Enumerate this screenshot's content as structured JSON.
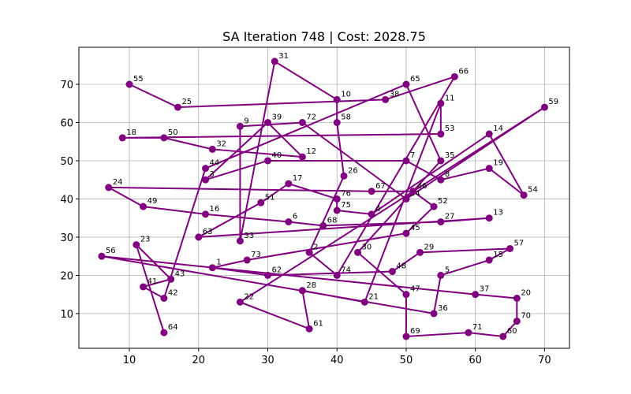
{
  "chart_data": {
    "type": "line",
    "title": "SA Iteration 748 | Cost: 2028.75",
    "labels": [
      "55",
      "25",
      "38",
      "66",
      "74",
      "2",
      "26",
      "58",
      "10",
      "31",
      "33",
      "9",
      "72",
      "34",
      "59",
      "22",
      "61",
      "28",
      "21",
      "11",
      "53",
      "18",
      "50",
      "32",
      "12",
      "39",
      "3",
      "40",
      "7",
      "8",
      "19",
      "54",
      "14",
      "4",
      "75",
      "76",
      "17",
      "51",
      "63",
      "13",
      "27",
      "68",
      "6",
      "16",
      "49",
      "24",
      "67",
      "46",
      "52",
      "45",
      "73",
      "1",
      "62",
      "48",
      "29",
      "57",
      "15",
      "5",
      "36",
      "56",
      "37",
      "20",
      "70",
      "60",
      "71",
      "69",
      "47",
      "30",
      "35",
      "65",
      "44",
      "42",
      "41",
      "43",
      "23",
      "64"
    ],
    "x": [
      10,
      17,
      47,
      57,
      40,
      36,
      41,
      40,
      40,
      31,
      26,
      26,
      35,
      50,
      70,
      26,
      36,
      35,
      44,
      55,
      55,
      9,
      15,
      22,
      35,
      30,
      21,
      30,
      50,
      55,
      62,
      67,
      62,
      45,
      40,
      40,
      33,
      29,
      20,
      62,
      55,
      38,
      33,
      21,
      12,
      7,
      45,
      51,
      54,
      50,
      27,
      22,
      30,
      48,
      52,
      65,
      62,
      55,
      54,
      6,
      60,
      66,
      66,
      64,
      59,
      50,
      50,
      43,
      55,
      50,
      21,
      15,
      12,
      16,
      11,
      15
    ],
    "values": [
      70,
      64,
      66,
      72,
      20,
      26,
      46,
      60,
      66,
      76,
      29,
      59,
      60,
      40,
      64,
      13,
      6,
      16,
      13,
      65,
      57,
      56,
      56,
      53,
      51,
      60,
      45,
      50,
      50,
      45,
      48,
      41,
      57,
      36,
      37,
      40,
      44,
      39,
      30,
      35,
      34,
      33,
      34,
      36,
      38,
      43,
      42,
      42,
      38,
      31,
      24,
      22,
      20,
      21,
      26,
      27,
      24,
      20,
      10,
      25,
      15,
      14,
      8,
      4,
      5,
      4,
      15,
      26,
      50,
      70,
      48,
      14,
      17,
      19,
      28,
      5
    ],
    "color": "#800080",
    "xlim": [
      2.7,
      73.6
    ],
    "ylim": [
      0.9,
      79.7
    ],
    "xticks": [
      10,
      20,
      30,
      40,
      50,
      60,
      70
    ],
    "yticks": [
      10,
      20,
      30,
      40,
      50,
      60,
      70
    ],
    "grid": true
  }
}
